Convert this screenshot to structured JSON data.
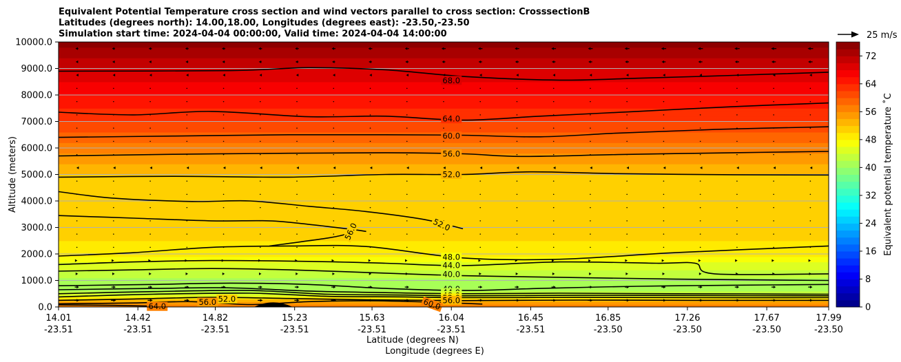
{
  "chart_data": {
    "type": "heatmap",
    "title_lines": [
      "Equivalent Potential Temperature cross section and wind vectors parallel to cross section: CrosssectionB",
      "Latitudes (degrees north): 14.00,18.00, Longitudes (degrees east): -23.50,-23.50",
      "Simulation start time: 2024-04-04 00:00:00, Valid time: 2024-04-04 14:00:00"
    ],
    "xlabel_primary": "Latitude (degrees N)",
    "xlabel_secondary": "Longitude (degrees E)",
    "ylabel": "Altitude (meters)",
    "colorbar_label": "Equivalent potential temperature ˚C",
    "x_ticks": [
      {
        "lat": "14.01",
        "lon": "-23.51",
        "value": 14.01
      },
      {
        "lat": "14.42",
        "lon": "-23.51",
        "value": 14.42
      },
      {
        "lat": "14.82",
        "lon": "-23.51",
        "value": 14.82
      },
      {
        "lat": "15.23",
        "lon": "-23.51",
        "value": 15.23
      },
      {
        "lat": "15.63",
        "lon": "-23.51",
        "value": 15.63
      },
      {
        "lat": "16.04",
        "lon": "-23.51",
        "value": 16.04
      },
      {
        "lat": "16.45",
        "lon": "-23.51",
        "value": 16.45
      },
      {
        "lat": "16.85",
        "lon": "-23.50",
        "value": 16.85
      },
      {
        "lat": "17.26",
        "lon": "-23.50",
        "value": 17.26
      },
      {
        "lat": "17.67",
        "lon": "-23.50",
        "value": 17.67
      },
      {
        "lat": "17.99",
        "lon": "-23.50",
        "value": 17.99
      }
    ],
    "xlim": [
      14.01,
      17.99
    ],
    "y_ticks": [
      "0.0",
      "1000.0",
      "2000.0",
      "3000.0",
      "4000.0",
      "5000.0",
      "6000.0",
      "7000.0",
      "8000.0",
      "9000.0",
      "10000.0"
    ],
    "ylim": [
      0,
      10000
    ],
    "grid": "horizontal",
    "colorbar": {
      "vmin": 0,
      "vmax": 76,
      "step": 2,
      "colormap": "jet",
      "ticks": [
        "0",
        "8",
        "16",
        "24",
        "32",
        "40",
        "48",
        "56",
        "64",
        "72"
      ]
    },
    "quiver_key": {
      "label": "25 m/s",
      "value": 25
    },
    "theta_e_profile": [
      {
        "z": 0,
        "t": 58
      },
      {
        "z": 200,
        "t": 55
      },
      {
        "z": 400,
        "t": 46
      },
      {
        "z": 700,
        "t": 40
      },
      {
        "z": 1000,
        "t": 41
      },
      {
        "z": 1300,
        "t": 43
      },
      {
        "z": 1600,
        "t": 45
      },
      {
        "z": 2000,
        "t": 48.5
      },
      {
        "z": 3000,
        "t": 51.5
      },
      {
        "z": 4000,
        "t": 51
      },
      {
        "z": 5000,
        "t": 52
      },
      {
        "z": 6000,
        "t": 57
      },
      {
        "z": 7000,
        "t": 62
      },
      {
        "z": 8000,
        "t": 66
      },
      {
        "z": 9000,
        "t": 70
      },
      {
        "z": 10000,
        "t": 75
      }
    ],
    "contours": [
      {
        "label": "68.0",
        "points": [
          [
            14.01,
            8900
          ],
          [
            14.9,
            8920
          ],
          [
            15.3,
            9030
          ],
          [
            15.7,
            8950
          ],
          [
            16.1,
            8700
          ],
          [
            16.6,
            8560
          ],
          [
            17.0,
            8630
          ],
          [
            17.5,
            8740
          ],
          [
            17.99,
            8860
          ]
        ]
      },
      {
        "label": "64.0",
        "points": [
          [
            14.01,
            7350
          ],
          [
            14.4,
            7250
          ],
          [
            14.8,
            7380
          ],
          [
            15.3,
            7180
          ],
          [
            15.7,
            7200
          ],
          [
            16.1,
            7050
          ],
          [
            16.5,
            7200
          ],
          [
            17.0,
            7380
          ],
          [
            17.5,
            7560
          ],
          [
            17.99,
            7700
          ]
        ]
      },
      {
        "label": "60.0",
        "points": [
          [
            14.01,
            6400
          ],
          [
            14.6,
            6450
          ],
          [
            15.2,
            6500
          ],
          [
            15.7,
            6500
          ],
          [
            16.1,
            6480
          ],
          [
            16.5,
            6420
          ],
          [
            16.9,
            6560
          ],
          [
            17.4,
            6700
          ],
          [
            17.99,
            6800
          ]
        ]
      },
      {
        "label": "56.0",
        "points": [
          [
            14.01,
            5700
          ],
          [
            14.6,
            5760
          ],
          [
            15.2,
            5800
          ],
          [
            15.7,
            5820
          ],
          [
            16.1,
            5780
          ],
          [
            16.4,
            5680
          ],
          [
            16.9,
            5750
          ],
          [
            17.5,
            5820
          ],
          [
            17.99,
            5870
          ]
        ]
      },
      {
        "label": "52.0",
        "points": [
          [
            14.01,
            4900
          ],
          [
            14.6,
            4930
          ],
          [
            15.2,
            4900
          ],
          [
            15.7,
            5000
          ],
          [
            16.1,
            5000
          ],
          [
            16.45,
            5100
          ],
          [
            16.9,
            5030
          ],
          [
            17.5,
            4990
          ],
          [
            17.99,
            4980
          ]
        ]
      },
      {
        "label": "52.0",
        "points": [
          [
            14.01,
            4350
          ],
          [
            14.3,
            4100
          ],
          [
            14.7,
            3980
          ],
          [
            15.0,
            4000
          ],
          [
            15.3,
            3800
          ],
          [
            15.6,
            3600
          ],
          [
            15.9,
            3300
          ],
          [
            16.1,
            2950
          ]
        ]
      },
      {
        "label": "56.0",
        "points": [
          [
            14.01,
            3450
          ],
          [
            14.4,
            3350
          ],
          [
            14.8,
            3250
          ],
          [
            15.1,
            3250
          ],
          [
            15.3,
            3120
          ],
          [
            15.5,
            2950
          ],
          [
            15.6,
            2850
          ]
        ]
      },
      {
        "label": "56.0",
        "points": [
          [
            15.5,
            2750
          ],
          [
            15.4,
            2600
          ],
          [
            15.1,
            2300
          ]
        ]
      },
      {
        "label": "48.0",
        "points": [
          [
            14.01,
            1920
          ],
          [
            14.4,
            2050
          ],
          [
            14.8,
            2250
          ],
          [
            15.2,
            2300
          ],
          [
            15.6,
            2280
          ],
          [
            16.1,
            1850
          ],
          [
            16.6,
            1800
          ],
          [
            17.2,
            2050
          ],
          [
            17.99,
            2300
          ]
        ]
      },
      {
        "label": "44.0",
        "points": [
          [
            14.01,
            1600
          ],
          [
            14.4,
            1700
          ],
          [
            14.8,
            1750
          ],
          [
            15.3,
            1720
          ],
          [
            15.7,
            1650
          ],
          [
            16.1,
            1560
          ],
          [
            16.6,
            1700
          ],
          [
            17.1,
            1650
          ],
          [
            17.3,
            1650
          ],
          [
            17.4,
            1250
          ],
          [
            17.99,
            1250
          ]
        ]
      },
      {
        "label": "40.0",
        "points": [
          [
            14.01,
            1350
          ],
          [
            14.4,
            1400
          ],
          [
            14.8,
            1450
          ],
          [
            15.2,
            1400
          ],
          [
            15.6,
            1300
          ],
          [
            16.1,
            1180
          ],
          [
            16.6,
            1120
          ],
          [
            17.2,
            1050
          ],
          [
            17.99,
            1000
          ]
        ]
      },
      {
        "label": "40.0",
        "points": [
          [
            14.01,
            800
          ],
          [
            14.5,
            850
          ],
          [
            14.9,
            900
          ],
          [
            15.3,
            850
          ],
          [
            15.7,
            700
          ],
          [
            16.1,
            620
          ],
          [
            16.5,
            700
          ],
          [
            17.0,
            780
          ],
          [
            17.5,
            820
          ],
          [
            17.99,
            850
          ]
        ]
      },
      {
        "label": "44.0",
        "points": [
          [
            14.01,
            650
          ],
          [
            14.5,
            700
          ],
          [
            14.9,
            720
          ],
          [
            15.3,
            600
          ],
          [
            15.7,
            540
          ],
          [
            16.1,
            500
          ],
          [
            16.6,
            520
          ],
          [
            17.2,
            500
          ],
          [
            17.99,
            480
          ]
        ]
      },
      {
        "label": "48.0",
        "points": [
          [
            14.01,
            500
          ],
          [
            14.5,
            580
          ],
          [
            15.0,
            620
          ],
          [
            15.4,
            480
          ],
          [
            15.8,
            450
          ],
          [
            16.1,
            420
          ],
          [
            16.7,
            440
          ],
          [
            17.3,
            430
          ],
          [
            17.99,
            420
          ]
        ]
      },
      {
        "label": "52.0",
        "points": [
          [
            14.01,
            380
          ],
          [
            14.5,
            480
          ],
          [
            15.0,
            520
          ],
          [
            15.4,
            400
          ],
          [
            15.8,
            380
          ],
          [
            16.1,
            350
          ],
          [
            16.7,
            360
          ],
          [
            17.3,
            350
          ],
          [
            17.99,
            350
          ]
        ]
      },
      {
        "label": "56.0",
        "points": [
          [
            14.01,
            250
          ],
          [
            14.4,
            300
          ],
          [
            14.8,
            360
          ],
          [
            15.2,
            320
          ],
          [
            15.6,
            270
          ],
          [
            16.1,
            240
          ],
          [
            16.7,
            260
          ],
          [
            17.3,
            250
          ],
          [
            17.99,
            250
          ]
        ]
      },
      {
        "label": "60.0",
        "points": [
          [
            14.01,
            120
          ],
          [
            14.4,
            150
          ],
          [
            14.7,
            200
          ],
          [
            15.0,
            90
          ],
          [
            15.3,
            200
          ],
          [
            15.6,
            230
          ],
          [
            15.9,
            190
          ],
          [
            16.2,
            110
          ]
        ]
      },
      {
        "label": "64.0",
        "points": [
          [
            14.01,
            80
          ],
          [
            14.3,
            60
          ],
          [
            14.5,
            30
          ]
        ]
      }
    ],
    "contour_labels_shown": [
      {
        "text": "68.0",
        "x": 16.04,
        "z": 8550,
        "angle": 0
      },
      {
        "text": "64.0",
        "x": 16.04,
        "z": 7100,
        "angle": 0
      },
      {
        "text": "60.0",
        "x": 16.04,
        "z": 6450,
        "angle": 0
      },
      {
        "text": "56.0",
        "x": 16.04,
        "z": 5780,
        "angle": 0
      },
      {
        "text": "52.0",
        "x": 16.04,
        "z": 5000,
        "angle": 0
      },
      {
        "text": "52.0",
        "x": 15.99,
        "z": 3100,
        "angle": 25
      },
      {
        "text": "56.0",
        "x": 15.52,
        "z": 2850,
        "angle": -65
      },
      {
        "text": "48.0",
        "x": 16.04,
        "z": 1880,
        "angle": 0
      },
      {
        "text": "44.0",
        "x": 16.04,
        "z": 1570,
        "angle": 0
      },
      {
        "text": "40.0",
        "x": 16.04,
        "z": 1230,
        "angle": 0
      },
      {
        "text": "40.0",
        "x": 16.04,
        "z": 680,
        "angle": 0
      },
      {
        "text": "44.0",
        "x": 16.04,
        "z": 540,
        "angle": 0
      },
      {
        "text": "48.0",
        "x": 16.04,
        "z": 430,
        "angle": 0
      },
      {
        "text": "52.0",
        "x": 16.04,
        "z": 340,
        "angle": 0
      },
      {
        "text": "56.0",
        "x": 16.04,
        "z": 250,
        "angle": 0
      },
      {
        "text": "52.0",
        "x": 14.88,
        "z": 300,
        "angle": 0
      },
      {
        "text": "56.0",
        "x": 14.78,
        "z": 180,
        "angle": 0
      },
      {
        "text": "60.0",
        "x": 15.94,
        "z": 100,
        "angle": 20
      },
      {
        "text": "64.0",
        "x": 14.52,
        "z": 20,
        "angle": 0
      }
    ],
    "wind_u_profile": [
      {
        "z": 500,
        "u": 6
      },
      {
        "z": 1000,
        "u": 4
      },
      {
        "z": 1500,
        "u": 1.5
      },
      {
        "z": 2500,
        "u": 0.5
      },
      {
        "z": 3500,
        "u": -0.5
      },
      {
        "z": 4500,
        "u": -0.8
      },
      {
        "z": 5500,
        "u": -1.2
      },
      {
        "z": 6500,
        "u": 0
      },
      {
        "z": 7500,
        "u": 0.2
      },
      {
        "z": 8500,
        "u": -1
      },
      {
        "z": 9500,
        "u": -5
      }
    ],
    "terrain_peak": {
      "x": 15.12,
      "height": 180
    }
  }
}
